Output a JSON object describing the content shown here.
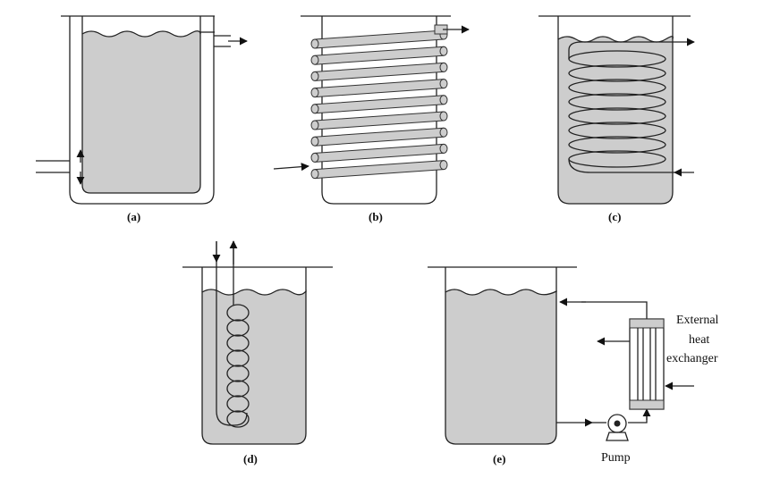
{
  "panels": {
    "a": {
      "label": "(a)"
    },
    "b": {
      "label": "(b)"
    },
    "c": {
      "label": "(c)"
    },
    "d": {
      "label": "(d)"
    },
    "e": {
      "label": "(e)"
    }
  },
  "exchanger": {
    "line1": "External",
    "line2": "heat",
    "line3": "exchanger"
  },
  "pump": {
    "label": "Pump"
  },
  "colors": {
    "liquid": "#cdcdcd",
    "line": "#222222"
  }
}
